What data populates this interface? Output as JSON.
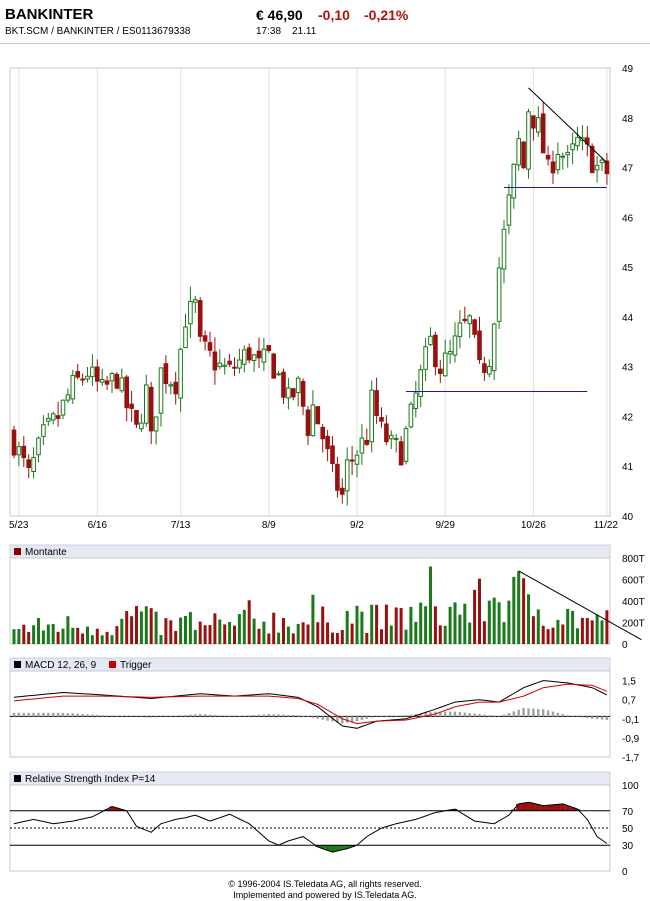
{
  "header": {
    "name": "BANKINTER",
    "price": "€ 46,90",
    "change": "-0,10",
    "change_pct": "-0,21%",
    "subtitle": "BKT.SCM   /   BANKINTER   /   ES0113679338",
    "time": "17:38",
    "date": "21.11"
  },
  "colors": {
    "up": "#1a7a1a",
    "down": "#9a1010",
    "trendline": "#1a1aa8",
    "panel_title_bg": "#e3eaf4",
    "volume_legend": "#8b0000",
    "macd_legend": "#000000",
    "trigger_legend": "#cc0000"
  },
  "chart_data": [
    {
      "type": "candlestick",
      "title": "",
      "x_tick_labels": [
        "5/23",
        "6/16",
        "7/13",
        "8/9",
        "9/2",
        "9/29",
        "10/26",
        "11/22"
      ],
      "y_tick_labels": [
        "49",
        "48",
        "47",
        "46",
        "45",
        "44",
        "43",
        "42",
        "41",
        "40"
      ],
      "ylim": [
        40,
        49
      ],
      "grid": "vertical",
      "close_path": [
        [
          0,
          41.5
        ],
        [
          3,
          40.8
        ],
        [
          6,
          41.6
        ],
        [
          9,
          42.0
        ],
        [
          12,
          42.6
        ],
        [
          15,
          42.9
        ],
        [
          18,
          42.5
        ],
        [
          21,
          42.8
        ],
        [
          23,
          42.2
        ],
        [
          25,
          41.7
        ],
        [
          27,
          42.5
        ],
        [
          28,
          41.5
        ],
        [
          30,
          42.9
        ],
        [
          33,
          42.7
        ],
        [
          35,
          44.0
        ],
        [
          37,
          44.2
        ],
        [
          38,
          43.4
        ],
        [
          40,
          43.2
        ],
        [
          42,
          43.0
        ],
        [
          44,
          42.9
        ],
        [
          46,
          43.1
        ],
        [
          48,
          43.3
        ],
        [
          50,
          43.0
        ],
        [
          52,
          43.2
        ],
        [
          54,
          42.8
        ],
        [
          56,
          42.3
        ],
        [
          58,
          42.6
        ],
        [
          60,
          41.8
        ],
        [
          61,
          42.2
        ],
        [
          63,
          41.6
        ],
        [
          65,
          40.8
        ],
        [
          67,
          40.4
        ],
        [
          68,
          41.0
        ],
        [
          70,
          41.3
        ],
        [
          72,
          41.6
        ],
        [
          73,
          42.3
        ],
        [
          75,
          41.7
        ],
        [
          77,
          41.4
        ],
        [
          79,
          41.3
        ],
        [
          81,
          42.0
        ],
        [
          83,
          42.8
        ],
        [
          85,
          43.5
        ],
        [
          87,
          43.0
        ],
        [
          89,
          43.2
        ],
        [
          91,
          43.7
        ],
        [
          93,
          43.9
        ],
        [
          95,
          42.9
        ],
        [
          97,
          43.2
        ],
        [
          99,
          45.0
        ],
        [
          101,
          46.3
        ],
        [
          103,
          47.5
        ],
        [
          104,
          47.0
        ],
        [
          105,
          48.2
        ],
        [
          107,
          47.8
        ],
        [
          109,
          46.9
        ],
        [
          111,
          47.4
        ],
        [
          113,
          47.1
        ],
        [
          115,
          47.5
        ],
        [
          117,
          47.3
        ],
        [
          119,
          47.0
        ],
        [
          121,
          46.9
        ]
      ],
      "annotations": [
        {
          "kind": "trend",
          "from": [
            105,
            48.6
          ],
          "to": [
            121,
            47.1
          ]
        },
        {
          "kind": "support",
          "from": [
            100,
            46.6
          ],
          "to": [
            121,
            46.6
          ]
        },
        {
          "kind": "support",
          "from": [
            80,
            42.5
          ],
          "to": [
            117,
            42.5
          ]
        }
      ]
    },
    {
      "type": "bar",
      "title": "Montante",
      "y_tick_labels": [
        "800T",
        "600T",
        "400T",
        "200T",
        "0"
      ],
      "ylim": [
        0,
        800
      ],
      "volume_path": [
        [
          0,
          150
        ],
        [
          10,
          200
        ],
        [
          20,
          170
        ],
        [
          25,
          320
        ],
        [
          30,
          180
        ],
        [
          35,
          210
        ],
        [
          40,
          160
        ],
        [
          50,
          250
        ],
        [
          60,
          220
        ],
        [
          70,
          300
        ],
        [
          75,
          250
        ],
        [
          80,
          280
        ],
        [
          85,
          350
        ],
        [
          90,
          300
        ],
        [
          95,
          420
        ],
        [
          100,
          480
        ],
        [
          103,
          500
        ],
        [
          105,
          420
        ],
        [
          108,
          350
        ],
        [
          111,
          300
        ],
        [
          114,
          280
        ],
        [
          118,
          230
        ],
        [
          121,
          180
        ]
      ],
      "annotations": [
        {
          "kind": "trend",
          "from": [
            103,
            680
          ],
          "to": [
            126,
            40
          ]
        }
      ]
    },
    {
      "type": "line",
      "title": "MACD 12, 26, 9",
      "series": [
        {
          "name": "MACD 12, 26, 9",
          "path": [
            [
              0,
              0.8
            ],
            [
              10,
              1.0
            ],
            [
              18,
              0.9
            ],
            [
              28,
              0.75
            ],
            [
              38,
              0.95
            ],
            [
              45,
              0.85
            ],
            [
              52,
              0.95
            ],
            [
              58,
              0.8
            ],
            [
              62,
              0.4
            ],
            [
              67,
              -0.4
            ],
            [
              70,
              -0.5
            ],
            [
              74,
              -0.2
            ],
            [
              80,
              -0.1
            ],
            [
              86,
              0.3
            ],
            [
              90,
              0.6
            ],
            [
              95,
              0.7
            ],
            [
              99,
              0.6
            ],
            [
              104,
              1.2
            ],
            [
              108,
              1.5
            ],
            [
              113,
              1.4
            ],
            [
              118,
              1.2
            ],
            [
              121,
              0.9
            ]
          ]
        },
        {
          "name": "Trigger",
          "path": [
            [
              0,
              0.65
            ],
            [
              10,
              0.85
            ],
            [
              18,
              0.85
            ],
            [
              28,
              0.8
            ],
            [
              38,
              0.85
            ],
            [
              45,
              0.85
            ],
            [
              52,
              0.85
            ],
            [
              58,
              0.75
            ],
            [
              62,
              0.5
            ],
            [
              67,
              -0.1
            ],
            [
              70,
              -0.3
            ],
            [
              74,
              -0.2
            ],
            [
              80,
              -0.15
            ],
            [
              86,
              0.1
            ],
            [
              90,
              0.4
            ],
            [
              95,
              0.6
            ],
            [
              99,
              0.6
            ],
            [
              104,
              0.85
            ],
            [
              108,
              1.2
            ],
            [
              113,
              1.35
            ],
            [
              118,
              1.3
            ],
            [
              121,
              1.05
            ]
          ]
        }
      ],
      "y_tick_labels": [
        "1,5",
        "0,7",
        "-0,1",
        "-0,9",
        "-1,7"
      ],
      "ylim": [
        -1.7,
        1.9
      ]
    },
    {
      "type": "line",
      "title": "Relative Strength Index P=14",
      "series": [
        {
          "name": "Relative Strength Index P=14",
          "path": [
            [
              0,
              55
            ],
            [
              4,
              60
            ],
            [
              8,
              55
            ],
            [
              12,
              58
            ],
            [
              16,
              63
            ],
            [
              20,
              75
            ],
            [
              23,
              70
            ],
            [
              25,
              52
            ],
            [
              28,
              45
            ],
            [
              30,
              55
            ],
            [
              33,
              60
            ],
            [
              35,
              62
            ],
            [
              37,
              65
            ],
            [
              40,
              58
            ],
            [
              44,
              66
            ],
            [
              48,
              55
            ],
            [
              50,
              45
            ],
            [
              52,
              35
            ],
            [
              54,
              30
            ],
            [
              56,
              35
            ],
            [
              59,
              40
            ],
            [
              62,
              28
            ],
            [
              65,
              22
            ],
            [
              68,
              26
            ],
            [
              70,
              30
            ],
            [
              72,
              40
            ],
            [
              75,
              50
            ],
            [
              78,
              55
            ],
            [
              82,
              60
            ],
            [
              86,
              68
            ],
            [
              90,
              72
            ],
            [
              94,
              58
            ],
            [
              98,
              55
            ],
            [
              101,
              65
            ],
            [
              103,
              78
            ],
            [
              105,
              80
            ],
            [
              108,
              76
            ],
            [
              112,
              78
            ],
            [
              115,
              72
            ],
            [
              117,
              60
            ],
            [
              119,
              40
            ],
            [
              121,
              32
            ]
          ]
        }
      ],
      "y_tick_labels": [
        "100",
        "70",
        "50",
        "30",
        "0"
      ],
      "ylim": [
        0,
        100
      ],
      "reference_lines": [
        70,
        50,
        30
      ]
    }
  ],
  "footer": {
    "line1": "© 1996-2004 IS.Teledata AG, all rights reserved.",
    "line2": "Implemented and powered by  IS.Teledata AG."
  }
}
